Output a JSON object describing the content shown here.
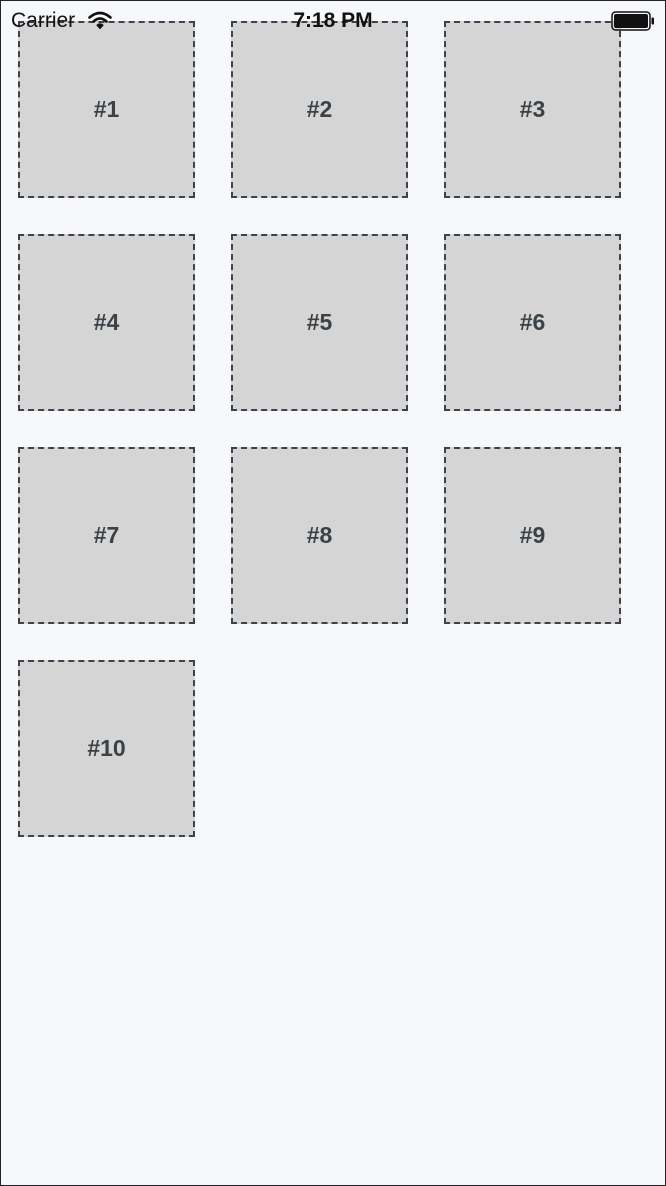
{
  "status_bar": {
    "carrier": "Carrier",
    "time": "7:18 PM",
    "icons": [
      "wifi-icon",
      "battery-icon"
    ]
  },
  "colors": {
    "background": "#f7f8fc",
    "tile_fill": "#d5d5d5",
    "tile_border": "#3e4347",
    "label_text": "#3b4247"
  },
  "tiles": [
    {
      "label": "#1"
    },
    {
      "label": "#2"
    },
    {
      "label": "#3"
    },
    {
      "label": "#4"
    },
    {
      "label": "#5"
    },
    {
      "label": "#6"
    },
    {
      "label": "#7"
    },
    {
      "label": "#8"
    },
    {
      "label": "#9"
    },
    {
      "label": "#10"
    }
  ]
}
